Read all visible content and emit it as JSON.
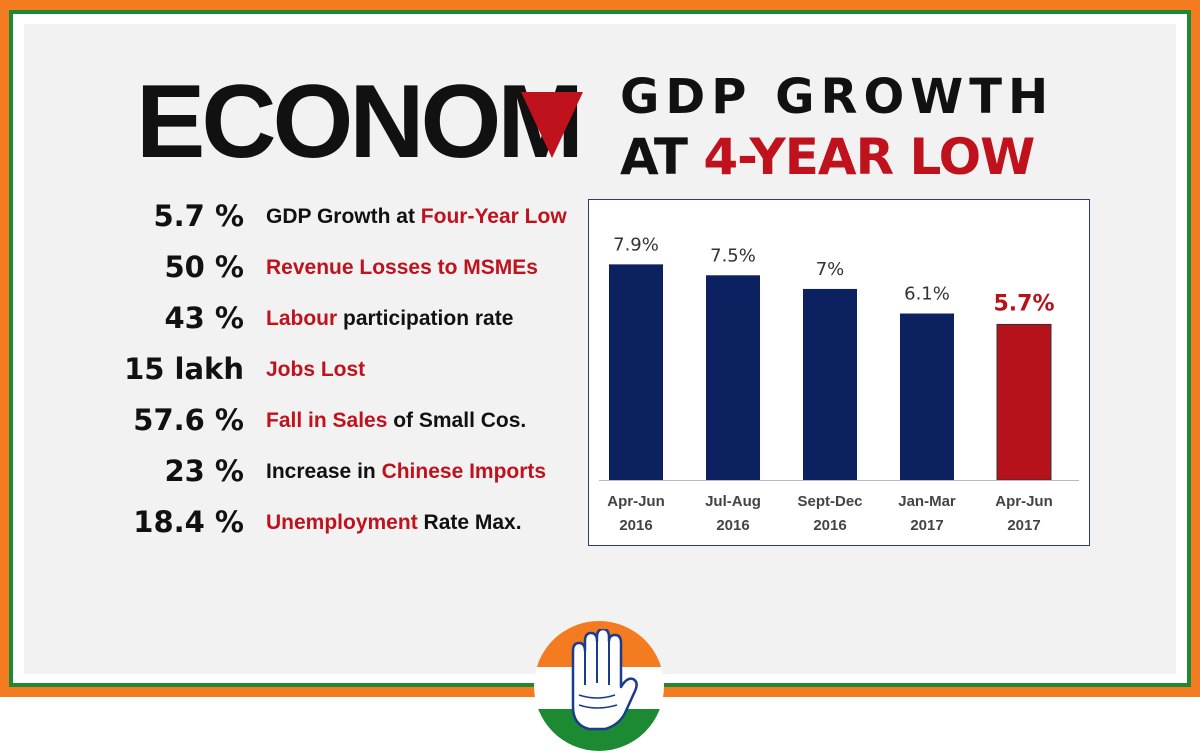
{
  "title": {
    "economy": "ECONOM",
    "headline_line1": "GDP GROWTH",
    "headline_line2_prefix": "AT ",
    "headline_line2_highlight": "4-YEAR LOW"
  },
  "stats": [
    {
      "value": "5.7 %",
      "parts": [
        {
          "text": "GDP Growth at ",
          "red": false
        },
        {
          "text": "Four-Year Low",
          "red": true
        }
      ]
    },
    {
      "value": "50 %",
      "parts": [
        {
          "text": "Revenue Losses to MSMEs",
          "red": true
        }
      ]
    },
    {
      "value": "43 %",
      "parts": [
        {
          "text": "Labour",
          "red": true
        },
        {
          "text": " participation rate",
          "red": false
        }
      ]
    },
    {
      "value": "15 lakh",
      "parts": [
        {
          "text": "Jobs Lost",
          "red": true
        }
      ]
    },
    {
      "value": "57.6 %",
      "parts": [
        {
          "text": "Fall in Sales",
          "red": true
        },
        {
          "text": " of Small Cos.",
          "red": false
        }
      ]
    },
    {
      "value": "23 %",
      "parts": [
        {
          "text": "Increase in ",
          "red": false
        },
        {
          "text": "Chinese Imports",
          "red": true
        }
      ]
    },
    {
      "value": "18.4  %",
      "parts": [
        {
          "text": "Unemployment",
          "red": true
        },
        {
          "text": " Rate Max.",
          "red": false
        }
      ]
    }
  ],
  "chart_data": {
    "type": "bar",
    "categories": [
      [
        "Apr-Jun",
        "2016"
      ],
      [
        "Jul-Aug",
        "2016"
      ],
      [
        "Sept-Dec",
        "2016"
      ],
      [
        "Jan-Mar",
        "2017"
      ],
      [
        "Apr-Jun",
        "2017"
      ]
    ],
    "values": [
      7.9,
      7.5,
      7,
      6.1,
      5.7
    ],
    "value_labels": [
      "7.9%",
      "7.5%",
      "7%",
      "6.1%",
      "5.7%"
    ],
    "bar_colors": [
      "#0b2160",
      "#0b2160",
      "#0b2160",
      "#0b2160",
      "#b5121b"
    ],
    "label_colors": [
      "#333333",
      "#333333",
      "#333333",
      "#333333",
      "#b5121b"
    ],
    "ylim": [
      0,
      8.5
    ],
    "title": "",
    "xlabel": "",
    "ylabel": ""
  },
  "colors": {
    "saffron": "#f47b20",
    "green": "#1c8a32",
    "accent_red": "#c0121d",
    "bar_blue": "#0b2160"
  },
  "logo": {
    "icon": "congress-hand-icon"
  }
}
